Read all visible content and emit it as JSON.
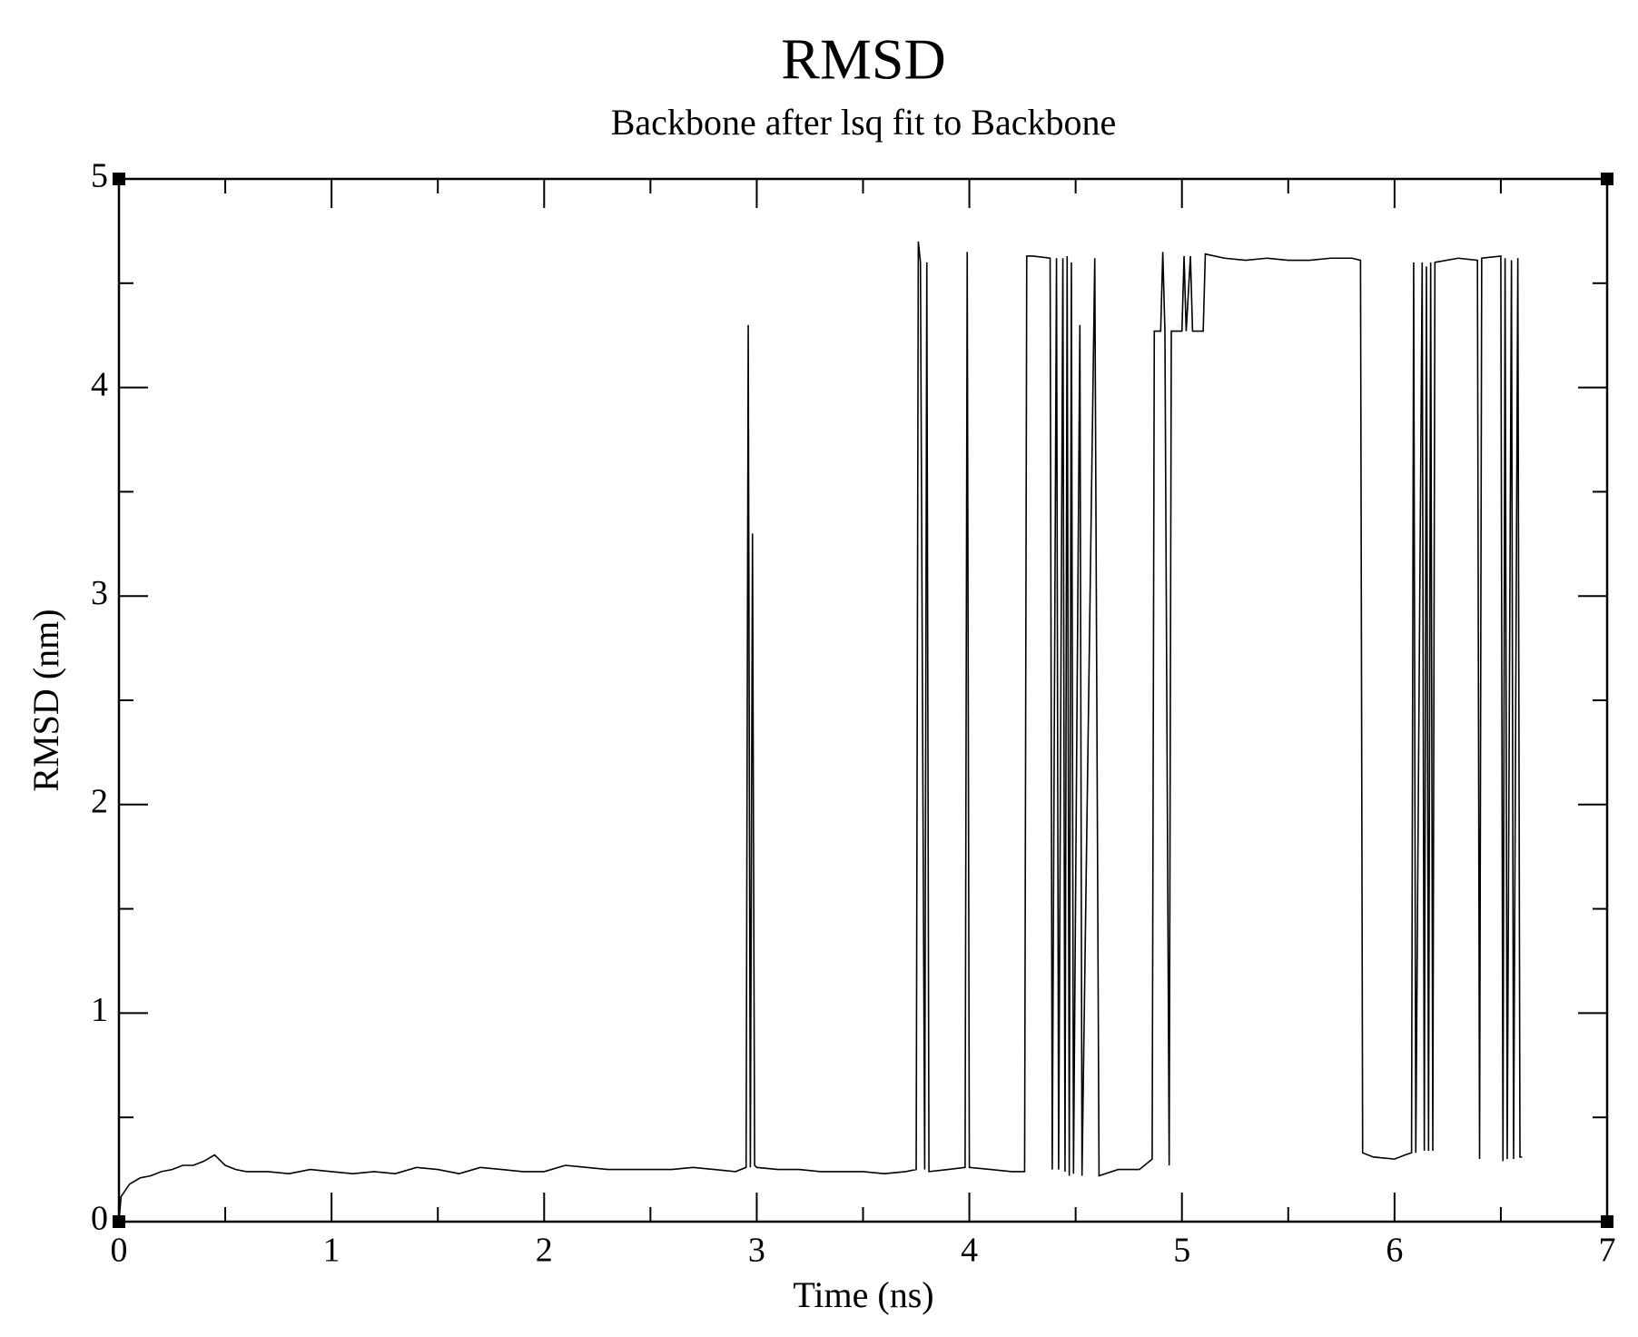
{
  "chart_data": {
    "type": "line",
    "title": "RMSD",
    "subtitle": "Backbone after lsq fit to Backbone",
    "x_label": "Time (ns)",
    "y_label": "RMSD (nm)",
    "xlim": [
      0,
      7
    ],
    "ylim": [
      0,
      5
    ],
    "xticks": [
      0,
      1,
      2,
      3,
      4,
      5,
      6,
      7
    ],
    "yticks": [
      0,
      1,
      2,
      3,
      4,
      5
    ],
    "xminorticks": [
      0.5,
      1.5,
      2.5,
      3.5,
      4.5,
      5.5,
      6.5
    ],
    "yminorticks": [
      0.5,
      1.5,
      2.5,
      3.5,
      4.5
    ],
    "grid": false,
    "x": [
      0,
      0.01,
      0.05,
      0.1,
      0.15,
      0.2,
      0.25,
      0.3,
      0.35,
      0.4,
      0.45,
      0.5,
      0.55,
      0.6,
      0.7,
      0.8,
      0.9,
      1.0,
      1.1,
      1.2,
      1.3,
      1.4,
      1.5,
      1.6,
      1.7,
      1.8,
      1.9,
      2.0,
      2.1,
      2.2,
      2.3,
      2.4,
      2.5,
      2.6,
      2.7,
      2.8,
      2.9,
      2.95,
      2.96,
      2.97,
      2.98,
      2.99,
      3.0,
      3.1,
      3.2,
      3.3,
      3.4,
      3.5,
      3.6,
      3.7,
      3.75,
      3.76,
      3.77,
      3.79,
      3.8,
      3.81,
      3.9,
      3.98,
      3.99,
      4.0,
      4.1,
      4.2,
      4.26,
      4.27,
      4.3,
      4.38,
      4.39,
      4.41,
      4.42,
      4.44,
      4.45,
      4.46,
      4.47,
      4.48,
      4.49,
      4.52,
      4.53,
      4.59,
      4.61,
      4.7,
      4.8,
      4.86,
      4.87,
      4.9,
      4.91,
      4.92,
      4.94,
      4.95,
      5.0,
      5.01,
      5.02,
      5.04,
      5.05,
      5.1,
      5.11,
      5.2,
      5.3,
      5.4,
      5.5,
      5.6,
      5.7,
      5.8,
      5.84,
      5.85,
      5.9,
      6.0,
      6.05,
      6.08,
      6.09,
      6.1,
      6.13,
      6.14,
      6.15,
      6.16,
      6.17,
      6.18,
      6.19,
      6.3,
      6.39,
      6.4,
      6.41,
      6.5,
      6.51,
      6.52,
      6.53,
      6.55,
      6.56,
      6.58,
      6.59,
      6.6
    ],
    "series": [
      {
        "name": "RMSD",
        "color": "#000000",
        "values": [
          0.0,
          0.12,
          0.18,
          0.21,
          0.22,
          0.24,
          0.25,
          0.27,
          0.27,
          0.29,
          0.32,
          0.27,
          0.25,
          0.24,
          0.24,
          0.23,
          0.25,
          0.24,
          0.23,
          0.24,
          0.23,
          0.26,
          0.25,
          0.23,
          0.26,
          0.25,
          0.24,
          0.24,
          0.27,
          0.26,
          0.25,
          0.25,
          0.25,
          0.25,
          0.26,
          0.25,
          0.24,
          0.26,
          4.3,
          0.26,
          3.3,
          0.27,
          0.26,
          0.25,
          0.25,
          0.24,
          0.24,
          0.24,
          0.23,
          0.24,
          0.25,
          4.7,
          4.6,
          0.25,
          4.6,
          0.24,
          0.25,
          0.26,
          4.65,
          0.26,
          0.25,
          0.24,
          0.24,
          4.63,
          4.63,
          4.62,
          0.25,
          4.62,
          0.25,
          4.62,
          0.24,
          4.63,
          0.22,
          4.6,
          0.23,
          4.3,
          0.22,
          4.62,
          0.22,
          0.25,
          0.25,
          0.3,
          4.27,
          4.27,
          4.65,
          4.27,
          0.27,
          4.27,
          4.27,
          4.63,
          4.27,
          4.63,
          4.27,
          4.27,
          4.64,
          4.62,
          4.61,
          4.62,
          4.61,
          4.61,
          4.62,
          4.62,
          4.61,
          0.33,
          0.31,
          0.3,
          0.32,
          0.33,
          4.6,
          0.33,
          4.6,
          0.34,
          4.58,
          0.34,
          4.6,
          0.34,
          4.6,
          4.62,
          4.61,
          0.3,
          4.62,
          4.63,
          0.29,
          4.62,
          0.3,
          4.61,
          0.3,
          4.62,
          0.31,
          0.31
        ]
      }
    ]
  }
}
